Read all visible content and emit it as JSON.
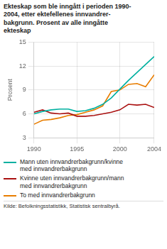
{
  "chart_data": {
    "type": "line",
    "title": "Ekteskap som ble inngått i perioden 1990-\n2004, etter ektefellenes innvandrer-\nbakgrunn. Prosent av alle inngåtte\nekteskap",
    "y_label": "Prosent",
    "source": "Kilde: Befolkningsstatistikk, Statistisk sentralbyrå.",
    "x": [
      1990,
      1991,
      1992,
      1993,
      1994,
      1995,
      1996,
      1997,
      1998,
      1999,
      2000,
      2001,
      2002,
      2003,
      2004
    ],
    "xlim": [
      1990,
      2004
    ],
    "xticks": [
      1990,
      1995,
      2000,
      2004
    ],
    "ylim": [
      3,
      15
    ],
    "yticks": [
      3,
      6,
      9,
      12,
      15
    ],
    "grid": true,
    "series": [
      {
        "name": "Mann uten innvandrerbakgrunn/kvinne\nmed innvandrerbakgrunn",
        "color": "#00b0a0",
        "values": [
          6.0,
          6.3,
          6.5,
          6.6,
          6.6,
          6.3,
          6.4,
          6.7,
          7.2,
          8.0,
          9.1,
          10.2,
          11.2,
          12.2,
          13.2
        ]
      },
      {
        "name": "Kvinne uten innvandrerbakgrunn/mann\nmed innvandrerbakgrunn",
        "color": "#aa1111",
        "values": [
          6.2,
          6.5,
          6.1,
          6.0,
          6.1,
          5.7,
          5.7,
          5.8,
          6.0,
          6.2,
          6.5,
          7.2,
          7.1,
          7.2,
          6.8
        ]
      },
      {
        "name": "To med innvandrerbakgrunn",
        "color": "#e87d00",
        "values": [
          4.7,
          5.2,
          5.3,
          5.5,
          5.8,
          5.9,
          6.2,
          6.5,
          7.0,
          8.8,
          9.0,
          9.7,
          9.8,
          9.4,
          10.9
        ]
      }
    ]
  }
}
